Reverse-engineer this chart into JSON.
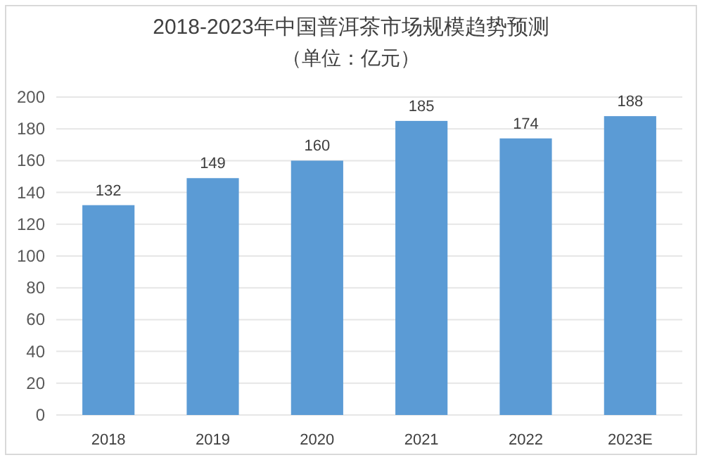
{
  "chart_data": {
    "type": "bar",
    "title": "2018-2023年中国普洱茶市场规模趋势预测",
    "subtitle": "（单位：亿元）",
    "categories": [
      "2018",
      "2019",
      "2020",
      "2021",
      "2022",
      "2023E"
    ],
    "values": [
      132,
      149,
      160,
      185,
      174,
      188
    ],
    "color": "#5b9bd5",
    "ylim": [
      0,
      200
    ],
    "yticks": [
      0,
      20,
      40,
      60,
      80,
      100,
      120,
      140,
      160,
      180,
      200
    ],
    "grid": "y",
    "data_labels": true
  }
}
